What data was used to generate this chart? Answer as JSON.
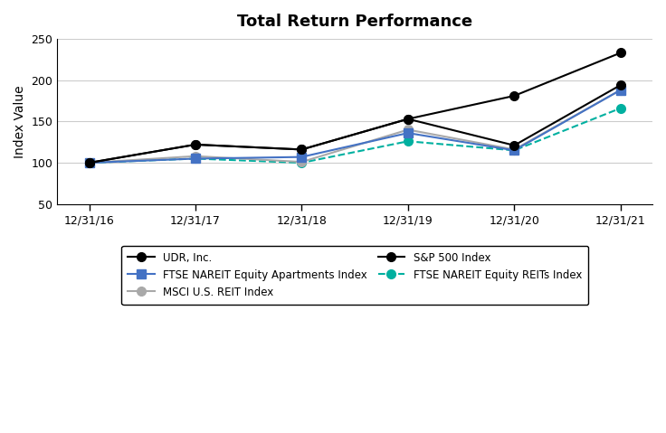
{
  "title": "Total Return Performance",
  "xlabel": "",
  "ylabel": "Index Value",
  "x_labels": [
    "12/31/16",
    "12/31/17",
    "12/31/18",
    "12/31/19",
    "12/31/20",
    "12/31/21"
  ],
  "x_positions": [
    0,
    1,
    2,
    3,
    4,
    5
  ],
  "ylim": [
    50,
    250
  ],
  "yticks": [
    50,
    100,
    150,
    200,
    250
  ],
  "series": {
    "UDR, Inc.": {
      "values": [
        100,
        122,
        116,
        153,
        121,
        194
      ],
      "color": "#000000",
      "linestyle": "-",
      "marker": "o",
      "markersize": 7,
      "linewidth": 1.5,
      "markerfacecolor": "#000000",
      "zorder": 5
    },
    "FTSE NAREIT Equity Apartments Index": {
      "values": [
        100,
        105,
        107,
        136,
        115,
        188
      ],
      "color": "#4472C4",
      "linestyle": "-",
      "marker": "s",
      "markersize": 7,
      "linewidth": 1.5,
      "markerfacecolor": "#4472C4",
      "zorder": 4
    },
    "MSCI U.S. REIT Index": {
      "values": [
        100,
        108,
        101,
        140,
        116,
        188
      ],
      "color": "#A9A9A9",
      "linestyle": "-",
      "marker": "o",
      "markersize": 7,
      "linewidth": 1.5,
      "markerfacecolor": "#A9A9A9",
      "zorder": 3
    },
    "S&P 500 Index": {
      "values": [
        100,
        122,
        116,
        153,
        181,
        233
      ],
      "color": "#000000",
      "linestyle": "-",
      "marker": "o",
      "markersize": 7,
      "linewidth": 1.5,
      "markerfacecolor": "#000000",
      "zorder": 6
    },
    "FTSE NAREIT Equity REITs Index": {
      "values": [
        100,
        105,
        100,
        126,
        115,
        166
      ],
      "color": "#00B0A0",
      "linestyle": "--",
      "marker": "o",
      "markersize": 7,
      "linewidth": 1.5,
      "markerfacecolor": "#00B0A0",
      "zorder": 2
    }
  },
  "legend_order": [
    "UDR, Inc.",
    "FTSE NAREIT Equity Apartments Index",
    "MSCI U.S. REIT Index",
    "S&P 500 Index",
    "FTSE NAREIT Equity REITs Index"
  ],
  "legend_ncol": 2,
  "background_color": "#FFFFFF",
  "grid_color": "#CCCCCC",
  "title_fontsize": 13,
  "axis_label_fontsize": 10,
  "tick_fontsize": 9,
  "legend_fontsize": 8.5
}
